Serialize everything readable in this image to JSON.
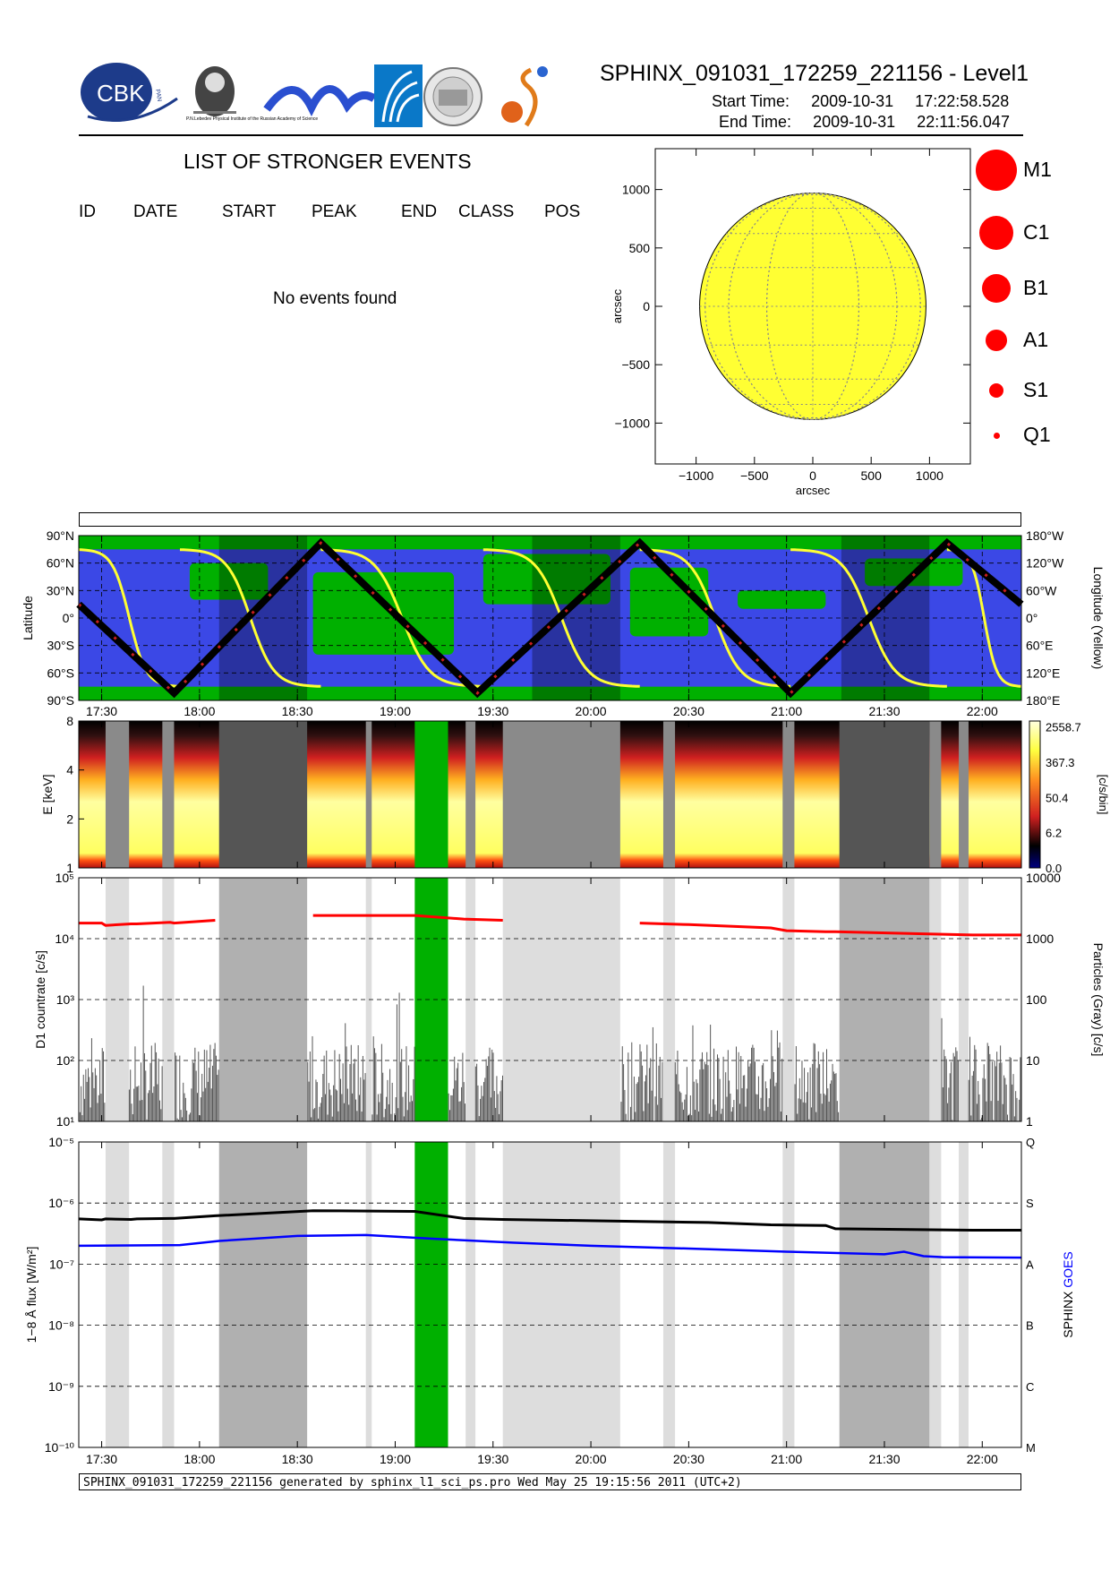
{
  "header": {
    "title": "SPHINX_091031_172259_221156 - Level1",
    "start_label": "Start Time:",
    "start_date": "2009-10-31",
    "start_time": "17:22:58.528",
    "end_label": "End Time:",
    "end_date": "2009-10-31",
    "end_time": "22:11:56.047",
    "logos": [
      "CBK",
      "PAN",
      "P.N.Lebedev Physical Institute of the Russian Academy of Science"
    ]
  },
  "events": {
    "title": "LIST OF STRONGER EVENTS",
    "columns": [
      "ID",
      "DATE",
      "START",
      "PEAK",
      "END",
      "CLASS",
      "POS"
    ],
    "empty_text": "No events found"
  },
  "sun_legend": [
    {
      "label": "M1",
      "size": 5
    },
    {
      "label": "C1",
      "size": 4
    },
    {
      "label": "B1",
      "size": 3
    },
    {
      "label": "A1",
      "size": 2
    },
    {
      "label": "S1",
      "size": 1
    },
    {
      "label": "Q1",
      "size": 0
    }
  ],
  "footer": "SPHINX_091031_172259_221156 generated by sphinx_l1_sci_ps.pro Wed May 25 19:15:56 2011 (UTC+2)",
  "colors": {
    "sun": "#ffff33",
    "map_blue": "#3b48e6",
    "map_green": "#00b000",
    "gap_green": "#00b000",
    "sphinx": "#000000",
    "goes": "#0000ff",
    "counts": "#ff0000"
  },
  "chart_data": [
    {
      "type": "scatter",
      "title": "",
      "xlabel": "arcsec",
      "ylabel": "arcsec",
      "xlim": [
        -1350,
        1350
      ],
      "ylim": [
        -1350,
        1350
      ],
      "xticks": [
        -1000,
        -500,
        0,
        500,
        1000
      ],
      "yticks": [
        1000,
        500,
        0,
        -500,
        -1000
      ],
      "tick_labels_x": [
        "−1000",
        "−500",
        "0",
        "500",
        "1000"
      ],
      "tick_labels_y": [
        "1000",
        "500",
        "0",
        "−500",
        "−1000"
      ],
      "solar_radius_arcsec": 970,
      "grid_on_disk": true
    },
    {
      "type": "line",
      "title": "",
      "ylabel_left": "Latitude",
      "ylabel_right": "Longitude (Yellow)",
      "left_ticks": [
        "90°N",
        "60°N",
        "30°N",
        "0°",
        "30°S",
        "60°S",
        "90°S"
      ],
      "right_ticks": [
        "180°W",
        "120°W",
        "60°W",
        "0°",
        "60°E",
        "120°E",
        "180°E"
      ],
      "xlim_hours": [
        17.383,
        22.2
      ],
      "x_ticks": [
        "17:30",
        "18:00",
        "18:30",
        "19:00",
        "19:30",
        "20:00",
        "20:30",
        "21:00",
        "21:30",
        "22:00"
      ],
      "latitude_track": {
        "x": [
          17.383,
          17.87,
          18.62,
          19.42,
          20.25,
          21.02,
          21.82,
          22.2
        ],
        "y": [
          15,
          -82,
          82,
          -82,
          82,
          -82,
          82,
          15
        ]
      },
      "shadow_intervals": [
        [
          18.1,
          18.55
        ],
        [
          19.7,
          20.15
        ],
        [
          21.28,
          21.73
        ]
      ]
    },
    {
      "type": "heatmap",
      "title": "",
      "ylabel": "E [keV]",
      "colorbar_label": "[c/s/bin]",
      "y_ticks": [
        "1",
        "2",
        "4",
        "8"
      ],
      "colorbar_ticks": [
        "2558.7",
        "367.3",
        "50.4",
        "6.2",
        "0.0"
      ]
    },
    {
      "type": "line",
      "title": "",
      "ylabel_left": "D1 countrate [c/s]",
      "ylabel_right": "Particles (Gray) [c/s]",
      "y_ticks_left": [
        "10¹",
        "10²",
        "10³",
        "10⁴",
        "10⁵"
      ],
      "y_ticks_right": [
        "1",
        "10",
        "100",
        "1000",
        "10000"
      ],
      "ylim_left": [
        10,
        100000
      ],
      "series": [
        {
          "x": [
            17.383,
            17.5,
            17.52,
            17.65,
            17.68,
            17.85,
            17.87,
            18.08
          ],
          "y": [
            18000,
            18000,
            16500,
            17500,
            17500,
            18500,
            18000,
            20000
          ]
        },
        {
          "x": [
            18.58,
            19.1,
            19.35,
            19.55
          ],
          "y": [
            24000,
            24000,
            21000,
            20000
          ]
        },
        {
          "x": [
            20.25,
            20.5,
            20.92,
            21.0,
            21.2,
            21.25,
            21.95,
            22.2
          ],
          "y": [
            18000,
            17000,
            15000,
            13500,
            13000,
            13000,
            11500,
            11500
          ]
        }
      ]
    },
    {
      "type": "line",
      "title": "",
      "ylabel": "1−8 Å flux [W/m²]",
      "right_labels": [
        "M",
        "C",
        "B",
        "A",
        "S",
        "Q"
      ],
      "ylabel_right_sphinx": "SPHINX",
      "ylabel_right_goes": "GOES",
      "y_ticks": [
        "10⁻¹⁰",
        "10⁻⁹",
        "10⁻⁸",
        "10⁻⁷",
        "10⁻⁶",
        "10⁻⁵"
      ],
      "ylim": [
        1e-10,
        1e-05
      ],
      "series": [
        {
          "name": "SPHINX",
          "x": [
            17.383,
            17.5,
            17.52,
            17.65,
            17.68,
            17.85,
            17.87,
            18.08,
            18.58,
            19.1,
            19.35,
            19.55,
            20.25,
            20.6,
            20.92,
            21.2,
            21.25,
            21.95,
            22.2
          ],
          "y": [
            5.5e-07,
            5.3e-07,
            5.5e-07,
            5.4e-07,
            5.5e-07,
            5.6e-07,
            5.6e-07,
            6.2e-07,
            7.5e-07,
            7.3e-07,
            5.6e-07,
            5.4e-07,
            5e-07,
            4.8e-07,
            4.4e-07,
            4.3e-07,
            3.8e-07,
            3.6e-07,
            3.6e-07
          ]
        },
        {
          "name": "GOES",
          "x": [
            17.383,
            17.9,
            18.1,
            18.5,
            18.85,
            19.2,
            19.6,
            20.0,
            20.5,
            21.0,
            21.5,
            21.6,
            21.7,
            21.8,
            22.2
          ],
          "y": [
            2e-07,
            2.05e-07,
            2.4e-07,
            2.9e-07,
            3e-07,
            2.6e-07,
            2.25e-07,
            2e-07,
            1.8e-07,
            1.6e-07,
            1.45e-07,
            1.6e-07,
            1.35e-07,
            1.3e-07,
            1.28e-07
          ]
        }
      ]
    }
  ],
  "time_axis": {
    "start": 17.383,
    "end": 22.2,
    "gray_light": [
      [
        17.52,
        17.64
      ],
      [
        17.81,
        17.87
      ],
      [
        18.85,
        18.88
      ],
      [
        19.36,
        19.41
      ],
      [
        19.55,
        20.15
      ],
      [
        20.37,
        20.43
      ],
      [
        20.98,
        21.04
      ],
      [
        21.73,
        21.79
      ],
      [
        21.88,
        21.93
      ]
    ],
    "gray_dark": [
      [
        18.1,
        18.55
      ],
      [
        21.27,
        21.73
      ]
    ],
    "green": [
      [
        19.1,
        19.27
      ]
    ]
  }
}
